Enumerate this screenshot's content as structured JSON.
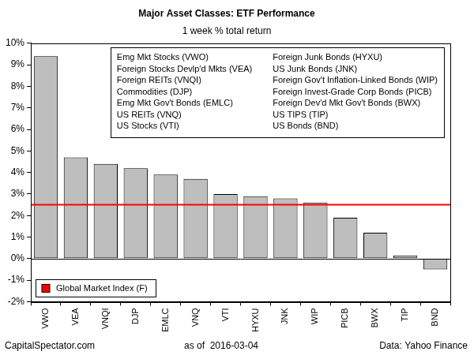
{
  "chart_data": {
    "type": "bar",
    "title": "Major Asset Classes: ETF Performance",
    "subtitle": "1 week % total return",
    "categories": [
      "VWO",
      "VEA",
      "VNQI",
      "DJP",
      "EMLC",
      "VNQ",
      "VTI",
      "HYXU",
      "JNK",
      "WIP",
      "PICB",
      "BWX",
      "TIP",
      "BND"
    ],
    "values": [
      9.4,
      4.7,
      4.4,
      4.2,
      3.9,
      3.7,
      3.0,
      2.9,
      2.8,
      2.6,
      1.9,
      1.2,
      0.15,
      -0.5
    ],
    "color": "#bebebe",
    "ylim": [
      -2,
      10
    ],
    "yticks": [
      {
        "value": -2,
        "label": "-2%"
      },
      {
        "value": -1,
        "label": "-1%"
      },
      {
        "value": 0,
        "label": "0%"
      },
      {
        "value": 1,
        "label": "1%"
      },
      {
        "value": 2,
        "label": "2%"
      },
      {
        "value": 3,
        "label": "3%"
      },
      {
        "value": 4,
        "label": "4%"
      },
      {
        "value": 5,
        "label": "5%"
      },
      {
        "value": 6,
        "label": "6%"
      },
      {
        "value": 7,
        "label": "7%"
      },
      {
        "value": 8,
        "label": "8%"
      },
      {
        "value": 9,
        "label": "9%"
      },
      {
        "value": 10,
        "label": "10%"
      }
    ],
    "grid": false,
    "legend": "lower-left",
    "reference_line": {
      "name": "Global Market Index (F)",
      "value": 2.5,
      "color": "#ff0000"
    },
    "annotations": [
      "Emg Mkt Stocks (VWO)",
      "Foreign Stocks Devlp'd Mkts (VEA)",
      "Foreign REITs (VNQI)",
      "Commodities (DJP)",
      "Emg Mkt Gov't Bonds (EMLC)",
      "US REITs (VNQ)",
      "US Stocks (VTI)",
      "Foreign Junk Bonds (HYXU)",
      "US Junk Bonds (JNK)",
      "Foreign Gov't Inflation-Linked Bonds (WIP)",
      "Foreign Invest-Grade Corp Bonds (PICB)",
      "Foreign Dev'd Mkt Gov't Bonds (BWX)",
      "US TIPS (TIP)",
      "US Bonds (BND)"
    ],
    "footer": [
      "CapitalSpectator.com",
      "as of  2016-03-04",
      "Data: Yahoo Finance"
    ]
  }
}
